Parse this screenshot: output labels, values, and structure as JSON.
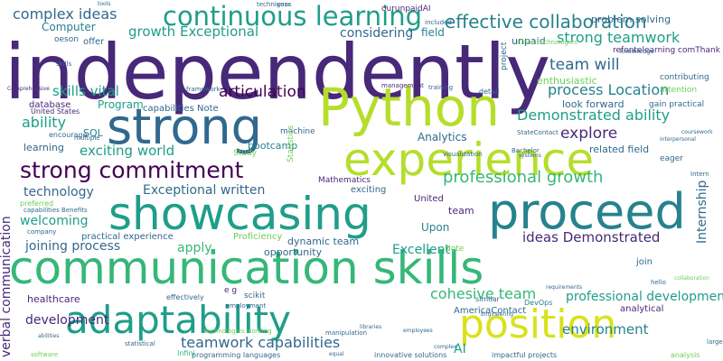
{
  "palette": {
    "indigo": "#482878",
    "purple": "#440154",
    "blue": "#31688e",
    "teal": "#26828e",
    "green": "#1f9e89",
    "emerald": "#35b779",
    "lime": "#6ece58",
    "yellow": "#b5de2b",
    "bright": "#d8e219"
  },
  "words": [
    {
      "id": "w-independently",
      "text": "independently"
    },
    {
      "id": "w-communication-skills",
      "text": "communication skills"
    },
    {
      "id": "w-python",
      "text": "Python"
    },
    {
      "id": "w-experience",
      "text": "experience"
    },
    {
      "id": "w-strong",
      "text": "strong"
    },
    {
      "id": "w-showcasing",
      "text": "showcasing"
    },
    {
      "id": "w-proceed",
      "text": "proceed"
    },
    {
      "id": "w-adaptability",
      "text": "adaptability"
    },
    {
      "id": "w-position",
      "text": "position"
    },
    {
      "id": "w-continuous-learning",
      "text": "continuous learning"
    },
    {
      "id": "w-strong-commitment",
      "text": "strong commitment"
    },
    {
      "id": "w-complex-ideas",
      "text": "complex ideas"
    },
    {
      "id": "w-effective-collaboration",
      "text": "effective collaboration"
    },
    {
      "id": "w-strong-teamwork",
      "text": "strong teamwork"
    },
    {
      "id": "w-growth-exceptional",
      "text": "growth Exceptional"
    },
    {
      "id": "w-considering",
      "text": "considering"
    },
    {
      "id": "w-team-will",
      "text": "team will"
    },
    {
      "id": "w-articulation",
      "text": "articulation"
    },
    {
      "id": "w-skills-vital",
      "text": "skills vital"
    },
    {
      "id": "w-process-location",
      "text": "process Location"
    },
    {
      "id": "w-demonstrated-ability-1",
      "text": "Demonstrated ability"
    },
    {
      "id": "w-ability",
      "text": "ability"
    },
    {
      "id": "w-explore",
      "text": "explore"
    },
    {
      "id": "w-exciting-world",
      "text": "exciting world"
    },
    {
      "id": "w-professional-growth",
      "text": "professional growth"
    },
    {
      "id": "w-exceptional-written",
      "text": "Exceptional written"
    },
    {
      "id": "w-technology",
      "text": "technology"
    },
    {
      "id": "w-welcoming",
      "text": "welcoming"
    },
    {
      "id": "w-joining-process",
      "text": "joining process"
    },
    {
      "id": "w-apply",
      "text": "apply"
    },
    {
      "id": "w-ideas-demonstrated",
      "text": "ideas Demonstrated"
    },
    {
      "id": "w-excellent",
      "text": "Excellent"
    },
    {
      "id": "w-cohesive-team",
      "text": "cohesive team"
    },
    {
      "id": "w-professional-development",
      "text": "professional development"
    },
    {
      "id": "w-development",
      "text": "development"
    },
    {
      "id": "w-teamwork-capabilities",
      "text": "teamwork capabilities"
    },
    {
      "id": "w-environment",
      "text": "environment"
    },
    {
      "id": "w-verbal-communication",
      "text": "verbal communication"
    },
    {
      "id": "w-internship",
      "text": "Internship"
    },
    {
      "id": "w-computer",
      "text": "Computer"
    },
    {
      "id": "w-field",
      "text": "field"
    },
    {
      "id": "w-problem-solving",
      "text": "problem solving"
    },
    {
      "id": "w-analytics",
      "text": "Analytics"
    },
    {
      "id": "w-program",
      "text": "Program"
    },
    {
      "id": "w-related-field",
      "text": "related field"
    },
    {
      "id": "w-look-forward",
      "text": "look forward"
    },
    {
      "id": "w-enthusiastic",
      "text": "enthusiastic"
    },
    {
      "id": "w-unpaid",
      "text": "unpaid"
    },
    {
      "id": "w-upon",
      "text": "Upon"
    },
    {
      "id": "w-team",
      "text": "team"
    },
    {
      "id": "w-healthcare",
      "text": "healthcare"
    },
    {
      "id": "w-sql",
      "text": "SQL"
    },
    {
      "id": "w-bootcamp",
      "text": "bootcamp"
    },
    {
      "id": "w-dynamic-team",
      "text": "dynamic team"
    },
    {
      "id": "w-opportunity",
      "text": "opportunity"
    },
    {
      "id": "w-practical-experience",
      "text": "practical experience"
    },
    {
      "id": "w-proficiency",
      "text": "Proficiency"
    },
    {
      "id": "w-americacontact",
      "text": "AmericaContact"
    },
    {
      "id": "w-ai",
      "text": "AI"
    },
    {
      "id": "w-analytical",
      "text": "analytical"
    },
    {
      "id": "w-learning",
      "text": "learning"
    },
    {
      "id": "w-database",
      "text": "database"
    },
    {
      "id": "w-capabilities-note",
      "text": "capabilities Note"
    },
    {
      "id": "w-exciting",
      "text": "exciting"
    },
    {
      "id": "w-mathematics",
      "text": "Mathematics"
    },
    {
      "id": "w-united",
      "text": "United"
    },
    {
      "id": "w-note",
      "text": "Note"
    },
    {
      "id": "w-join",
      "text": "join"
    },
    {
      "id": "w-ourunpaidai",
      "text": "ourunpaidAI"
    },
    {
      "id": "w-offer",
      "text": "offer"
    },
    {
      "id": "w-oeson",
      "text": "oeson"
    },
    {
      "id": "w-refontelearning",
      "text": "refontelearning comThank"
    },
    {
      "id": "w-machine",
      "text": "machine"
    },
    {
      "id": "w-innovative-solutions",
      "text": "innovative solutions"
    },
    {
      "id": "w-impactful-projects",
      "text": "impactful projects"
    },
    {
      "id": "w-programming-languages",
      "text": "programming languages"
    },
    {
      "id": "w-eager",
      "text": "eager"
    },
    {
      "id": "w-analysis",
      "text": "analysis"
    },
    {
      "id": "w-detail",
      "text": "detail"
    },
    {
      "id": "w-effectively",
      "text": "effectively"
    },
    {
      "id": "w-e-g",
      "text": "e g"
    },
    {
      "id": "w-encourage",
      "text": "encourage"
    },
    {
      "id": "w-preferred",
      "text": "preferred"
    },
    {
      "id": "w-united-states",
      "text": "United States"
    },
    {
      "id": "w-bachelor",
      "text": "Bachelor"
    },
    {
      "id": "w-devops",
      "text": "DevOps"
    },
    {
      "id": "w-comprehensive",
      "text": "Comprehensive"
    },
    {
      "id": "w-statecontact",
      "text": "StateContact"
    },
    {
      "id": "w-employment",
      "text": "employment"
    },
    {
      "id": "w-company",
      "text": "company"
    },
    {
      "id": "w-manipulation",
      "text": "manipulation"
    },
    {
      "id": "w-infini",
      "text": "Infini"
    },
    {
      "id": "w-technologies-working",
      "text": "technologies working"
    },
    {
      "id": "w-capabilities-benefits",
      "text": "capabilities Benefits"
    },
    {
      "id": "w-statistics",
      "text": "Statistics"
    },
    {
      "id": "w-project",
      "text": "project"
    },
    {
      "id": "w-included",
      "text": "included"
    },
    {
      "id": "w-cloud-technologies",
      "text": "Cloud technologies"
    },
    {
      "id": "w-training",
      "text": "training"
    },
    {
      "id": "w-techniques",
      "text": "techniques"
    },
    {
      "id": "w-gain-practical",
      "text": "gain practical"
    },
    {
      "id": "w-attention",
      "text": "attention"
    },
    {
      "id": "w-contributing",
      "text": "contributing"
    },
    {
      "id": "w-management",
      "text": "management"
    },
    {
      "id": "w-visualization",
      "text": "visualization"
    },
    {
      "id": "w-framework",
      "text": "framework"
    },
    {
      "id": "w-skills",
      "text": "skills"
    },
    {
      "id": "w-multiple",
      "text": "multiple"
    },
    {
      "id": "w-year",
      "text": "year"
    },
    {
      "id": "w-knowledge",
      "text": "knowledge"
    },
    {
      "id": "w-hello",
      "text": "hello"
    },
    {
      "id": "w-scikit",
      "text": "scikit"
    },
    {
      "id": "w-large",
      "text": "large"
    },
    {
      "id": "w-intern",
      "text": "Intern"
    },
    {
      "id": "w-similar",
      "text": "similar"
    },
    {
      "id": "w-collaboration",
      "text": "collaboration"
    },
    {
      "id": "w-engineering",
      "text": "Engineering"
    },
    {
      "id": "w-employees",
      "text": "employees"
    },
    {
      "id": "w-statistical",
      "text": "statistical"
    },
    {
      "id": "w-libraries",
      "text": "libraries"
    },
    {
      "id": "w-study",
      "text": "Study"
    },
    {
      "id": "w-interpersonal",
      "text": "interpersonal"
    },
    {
      "id": "w-coursework",
      "text": "coursework"
    },
    {
      "id": "w-requirements",
      "text": "requirements"
    },
    {
      "id": "w-systems",
      "text": "systems"
    },
    {
      "id": "w-complex",
      "text": "complex"
    },
    {
      "id": "w-equal",
      "text": "equal"
    },
    {
      "id": "w-software",
      "text": "software"
    },
    {
      "id": "w-tools",
      "text": "tools"
    },
    {
      "id": "w-abilities",
      "text": "abilities"
    }
  ]
}
